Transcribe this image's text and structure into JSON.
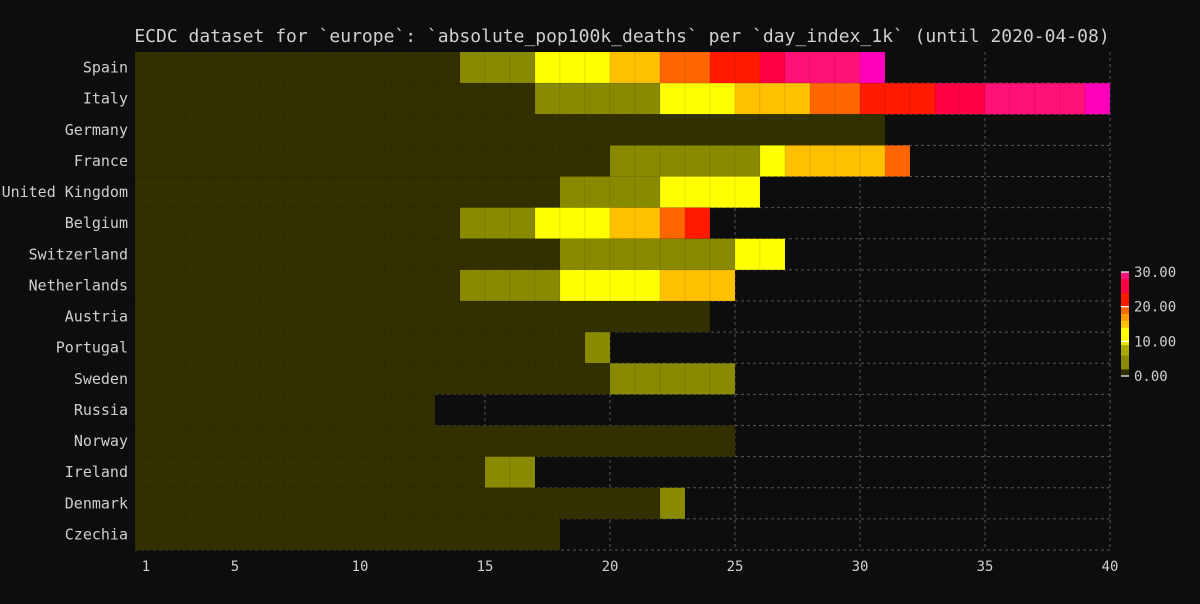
{
  "chart_data": {
    "type": "heatmap",
    "title": "ECDC dataset for `europe`: `absolute_pop100k_deaths` per `day_index_1k` (until 2020-04-08)",
    "xlabel": "",
    "ylabel": "",
    "x_ticks": [
      1,
      5,
      10,
      15,
      20,
      25,
      30,
      35,
      40
    ],
    "x_range": [
      1,
      40
    ],
    "grid": true,
    "legend_position": "right",
    "colorbar": {
      "ticks": [
        "0.00",
        "10.00",
        "20.00",
        "30.00"
      ],
      "range": [
        0,
        30
      ]
    },
    "row_labels": [
      "Spain",
      "Italy",
      "Germany",
      "France",
      "United Kingdom",
      "Belgium",
      "Switzerland",
      "Netherlands",
      "Austria",
      "Portugal",
      "Sweden",
      "Russia",
      "Norway",
      "Ireland",
      "Denmark",
      "Czechia"
    ],
    "rows": [
      {
        "name": "Spain",
        "last_day": 30,
        "values": [
          0,
          0,
          0,
          0,
          0,
          0,
          0,
          0,
          0,
          0,
          0,
          0,
          0,
          2,
          2,
          2,
          10,
          10,
          10,
          14,
          14,
          18,
          18,
          20,
          20,
          24,
          28,
          28,
          28,
          30
        ]
      },
      {
        "name": "Italy",
        "last_day": 39,
        "values": [
          0,
          0,
          0,
          0,
          0,
          0,
          0,
          0,
          0,
          0,
          0,
          0,
          0,
          0,
          0,
          0,
          2,
          2,
          2,
          2,
          2,
          10,
          10,
          10,
          14,
          14,
          14,
          18,
          18,
          20,
          20,
          20,
          24,
          24,
          28,
          28,
          28,
          28,
          30
        ]
      },
      {
        "name": "Germany",
        "last_day": 30,
        "values": [
          0,
          0,
          0,
          0,
          0,
          0,
          0,
          0,
          0,
          0,
          0,
          0,
          0,
          0,
          0,
          0,
          0,
          0,
          0,
          0,
          0,
          0,
          0,
          0,
          0,
          0,
          0,
          0,
          0,
          0
        ]
      },
      {
        "name": "France",
        "last_day": 31,
        "values": [
          0,
          0,
          0,
          0,
          0,
          0,
          0,
          0,
          0,
          0,
          0,
          0,
          0,
          0,
          0,
          0,
          0,
          0,
          0,
          2,
          2,
          2,
          2,
          2,
          2,
          10,
          14,
          14,
          14,
          14,
          18
        ]
      },
      {
        "name": "United Kingdom",
        "last_day": 25,
        "values": [
          0,
          0,
          0,
          0,
          0,
          0,
          0,
          0,
          0,
          0,
          0,
          0,
          0,
          0,
          0,
          0,
          0,
          2,
          2,
          2,
          2,
          10,
          10,
          10,
          10
        ]
      },
      {
        "name": "Belgium",
        "last_day": 23,
        "values": [
          0,
          0,
          0,
          0,
          0,
          0,
          0,
          0,
          0,
          0,
          0,
          0,
          0,
          2,
          2,
          2,
          10,
          10,
          10,
          14,
          14,
          18,
          20
        ]
      },
      {
        "name": "Switzerland",
        "last_day": 26,
        "values": [
          0,
          0,
          0,
          0,
          0,
          0,
          0,
          0,
          0,
          0,
          0,
          0,
          0,
          0,
          0,
          0,
          0,
          2,
          2,
          2,
          2,
          2,
          2,
          2,
          10,
          10
        ]
      },
      {
        "name": "Netherlands",
        "last_day": 24,
        "values": [
          0,
          0,
          0,
          0,
          0,
          0,
          0,
          0,
          0,
          0,
          0,
          0,
          0,
          2,
          2,
          2,
          2,
          10,
          10,
          10,
          10,
          14,
          14,
          14
        ]
      },
      {
        "name": "Austria",
        "last_day": 23,
        "values": [
          0,
          0,
          0,
          0,
          0,
          0,
          0,
          0,
          0,
          0,
          0,
          0,
          0,
          0,
          0,
          0,
          0,
          0,
          0,
          0,
          0,
          0,
          0
        ]
      },
      {
        "name": "Portugal",
        "last_day": 19,
        "values": [
          0,
          0,
          0,
          0,
          0,
          0,
          0,
          0,
          0,
          0,
          0,
          0,
          0,
          0,
          0,
          0,
          0,
          0,
          2
        ]
      },
      {
        "name": "Sweden",
        "last_day": 24,
        "values": [
          0,
          0,
          0,
          0,
          0,
          0,
          0,
          0,
          0,
          0,
          0,
          0,
          0,
          0,
          0,
          0,
          0,
          0,
          0,
          2,
          2,
          2,
          2,
          2
        ]
      },
      {
        "name": "Russia",
        "last_day": 12,
        "values": [
          0,
          0,
          0,
          0,
          0,
          0,
          0,
          0,
          0,
          0,
          0,
          0
        ]
      },
      {
        "name": "Norway",
        "last_day": 24,
        "values": [
          0,
          0,
          0,
          0,
          0,
          0,
          0,
          0,
          0,
          0,
          0,
          0,
          0,
          0,
          0,
          0,
          0,
          0,
          0,
          0,
          0,
          0,
          0,
          0
        ]
      },
      {
        "name": "Ireland",
        "last_day": 16,
        "values": [
          0,
          0,
          0,
          0,
          0,
          0,
          0,
          0,
          0,
          0,
          0,
          0,
          0,
          0,
          2,
          2
        ]
      },
      {
        "name": "Denmark",
        "last_day": 22,
        "values": [
          0,
          0,
          0,
          0,
          0,
          0,
          0,
          0,
          0,
          0,
          0,
          0,
          0,
          0,
          0,
          0,
          0,
          0,
          0,
          0,
          0,
          2
        ]
      },
      {
        "name": "Czechia",
        "last_day": 17,
        "values": [
          0,
          0,
          0,
          0,
          0,
          0,
          0,
          0,
          0,
          0,
          0,
          0,
          0,
          0,
          0,
          0,
          0
        ]
      }
    ],
    "colors": {
      "background": "#0d0d0d",
      "text": "#cfcfcf",
      "grid": "#555555",
      "scale": [
        {
          "v": 0,
          "c": "#333000"
        },
        {
          "v": 2,
          "c": "#8a8a00"
        },
        {
          "v": 6,
          "c": "#a9a900"
        },
        {
          "v": 9,
          "c": "#e8e800"
        },
        {
          "v": 10,
          "c": "#ffff00"
        },
        {
          "v": 14,
          "c": "#ffc000"
        },
        {
          "v": 16,
          "c": "#ff9900"
        },
        {
          "v": 18,
          "c": "#ff6600"
        },
        {
          "v": 20,
          "c": "#ff1a00"
        },
        {
          "v": 24,
          "c": "#ff0044"
        },
        {
          "v": 28,
          "c": "#ff1177"
        },
        {
          "v": 30,
          "c": "#ff00bb"
        }
      ]
    }
  }
}
